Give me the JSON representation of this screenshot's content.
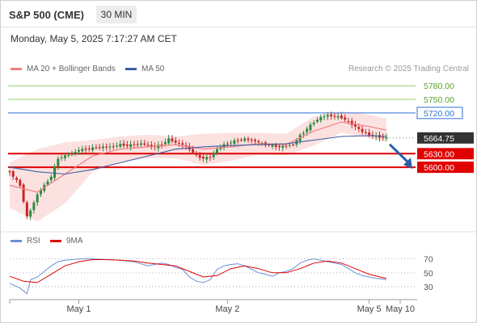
{
  "header": {
    "title": "S&P 500 (CME)",
    "timeframe": "30 MIN",
    "datetime": "Monday, May 5, 2025 7:17:27 AM CET"
  },
  "legend": {
    "ma20": "MA 20 + Bollinger Bands",
    "ma50": "MA 50",
    "rsi": "RSI",
    "ma9": "9MA",
    "credit": "Research © 2025 Trading Central"
  },
  "colors": {
    "ma20": "#f08080",
    "ma50": "#3a5f9e",
    "band_fill": "#fcdcdc",
    "resistance_green": "#8fcf70",
    "resistance_blue": "#2e6fd6",
    "support_red": "#e00000",
    "current_price": "#333333",
    "rsi": "#6b8fd8",
    "rsi_ma": "#e00000",
    "arrow": "#2a5fa8"
  },
  "chart_data": [
    {
      "type": "candlestick",
      "x_ticks": [
        "May 1",
        "May 2",
        "May 5",
        "May 10"
      ],
      "ylim": [
        5470,
        5800
      ],
      "levels": [
        {
          "value": 5780.0,
          "label": "5780.00",
          "kind": "resistance"
        },
        {
          "value": 5750.0,
          "label": "5750.00",
          "kind": "resistance"
        },
        {
          "value": 5720.0,
          "label": "5720.00",
          "kind": "pivot"
        },
        {
          "value": 5664.75,
          "label": "5664.75",
          "kind": "current"
        },
        {
          "value": 5630.0,
          "label": "5630.00",
          "kind": "support"
        },
        {
          "value": 5600.0,
          "label": "5600.00",
          "kind": "support"
        }
      ],
      "close_path": [
        [
          0,
          5590
        ],
        [
          3,
          5560
        ],
        [
          5,
          5490
        ],
        [
          6,
          5505
        ],
        [
          8,
          5540
        ],
        [
          10,
          5560
        ],
        [
          12,
          5580
        ],
        [
          14,
          5620
        ],
        [
          16,
          5625
        ],
        [
          18,
          5630
        ],
        [
          20,
          5638
        ],
        [
          22,
          5640
        ],
        [
          24,
          5642
        ],
        [
          26,
          5644
        ],
        [
          28,
          5645
        ],
        [
          30,
          5646
        ],
        [
          32,
          5650
        ],
        [
          34,
          5648
        ],
        [
          36,
          5650
        ],
        [
          38,
          5652
        ],
        [
          40,
          5648
        ],
        [
          42,
          5645
        ],
        [
          44,
          5650
        ],
        [
          46,
          5662
        ],
        [
          48,
          5655
        ],
        [
          50,
          5650
        ],
        [
          52,
          5640
        ],
        [
          54,
          5625
        ],
        [
          56,
          5620
        ],
        [
          58,
          5622
        ],
        [
          60,
          5640
        ],
        [
          62,
          5650
        ],
        [
          64,
          5655
        ],
        [
          66,
          5660
        ],
        [
          68,
          5662
        ],
        [
          70,
          5660
        ],
        [
          72,
          5655
        ],
        [
          74,
          5650
        ],
        [
          76,
          5648
        ],
        [
          78,
          5645
        ],
        [
          80,
          5648
        ],
        [
          82,
          5650
        ],
        [
          84,
          5670
        ],
        [
          86,
          5685
        ],
        [
          88,
          5700
        ],
        [
          90,
          5710
        ],
        [
          92,
          5715
        ],
        [
          94,
          5712
        ],
        [
          96,
          5710
        ],
        [
          98,
          5700
        ],
        [
          100,
          5690
        ],
        [
          102,
          5678
        ],
        [
          104,
          5672
        ],
        [
          106,
          5668
        ],
        [
          108,
          5666
        ],
        [
          109,
          5664.75
        ]
      ],
      "ma20": [
        [
          0,
          5560
        ],
        [
          8,
          5545
        ],
        [
          16,
          5585
        ],
        [
          24,
          5625
        ],
        [
          32,
          5640
        ],
        [
          40,
          5645
        ],
        [
          48,
          5650
        ],
        [
          56,
          5640
        ],
        [
          64,
          5645
        ],
        [
          72,
          5652
        ],
        [
          80,
          5650
        ],
        [
          88,
          5680
        ],
        [
          96,
          5700
        ],
        [
          104,
          5690
        ],
        [
          109,
          5682
        ]
      ],
      "ma50": [
        [
          0,
          5600
        ],
        [
          8,
          5590
        ],
        [
          16,
          5585
        ],
        [
          24,
          5595
        ],
        [
          32,
          5610
        ],
        [
          40,
          5625
        ],
        [
          48,
          5640
        ],
        [
          56,
          5645
        ],
        [
          64,
          5648
        ],
        [
          72,
          5650
        ],
        [
          80,
          5652
        ],
        [
          88,
          5660
        ],
        [
          96,
          5668
        ],
        [
          104,
          5670
        ],
        [
          109,
          5668
        ]
      ],
      "bollinger_upper": [
        [
          0,
          5610
        ],
        [
          8,
          5640
        ],
        [
          16,
          5655
        ],
        [
          24,
          5660
        ],
        [
          32,
          5668
        ],
        [
          40,
          5672
        ],
        [
          48,
          5668
        ],
        [
          56,
          5674
        ],
        [
          64,
          5676
        ],
        [
          72,
          5676
        ],
        [
          80,
          5674
        ],
        [
          88,
          5712
        ],
        [
          96,
          5724
        ],
        [
          104,
          5716
        ],
        [
          109,
          5708
        ]
      ],
      "bollinger_lower": [
        [
          0,
          5510
        ],
        [
          8,
          5480
        ],
        [
          16,
          5520
        ],
        [
          24,
          5590
        ],
        [
          32,
          5612
        ],
        [
          40,
          5620
        ],
        [
          48,
          5620
        ],
        [
          56,
          5605
        ],
        [
          64,
          5614
        ],
        [
          72,
          5628
        ],
        [
          80,
          5626
        ],
        [
          88,
          5648
        ],
        [
          96,
          5676
        ],
        [
          104,
          5664
        ],
        [
          109,
          5656
        ]
      ],
      "projection": {
        "from": 5664.75,
        "to": 5600.0
      }
    },
    {
      "type": "line",
      "name": "RSI",
      "ylim": [
        15,
        80
      ],
      "y_ticks": [
        70,
        50,
        30
      ],
      "rsi": [
        [
          0,
          35
        ],
        [
          3,
          28
        ],
        [
          5,
          20
        ],
        [
          6,
          40
        ],
        [
          8,
          44
        ],
        [
          10,
          52
        ],
        [
          12,
          60
        ],
        [
          14,
          66
        ],
        [
          16,
          68
        ],
        [
          18,
          69
        ],
        [
          20,
          70
        ],
        [
          24,
          70
        ],
        [
          28,
          69
        ],
        [
          32,
          68
        ],
        [
          36,
          66
        ],
        [
          40,
          60
        ],
        [
          44,
          64
        ],
        [
          46,
          62
        ],
        [
          48,
          58
        ],
        [
          50,
          55
        ],
        [
          52,
          44
        ],
        [
          54,
          38
        ],
        [
          56,
          36
        ],
        [
          58,
          40
        ],
        [
          60,
          55
        ],
        [
          62,
          60
        ],
        [
          64,
          62
        ],
        [
          66,
          63
        ],
        [
          68,
          60
        ],
        [
          70,
          55
        ],
        [
          72,
          50
        ],
        [
          74,
          48
        ],
        [
          76,
          45
        ],
        [
          78,
          50
        ],
        [
          80,
          52
        ],
        [
          82,
          56
        ],
        [
          84,
          64
        ],
        [
          86,
          68
        ],
        [
          88,
          70
        ],
        [
          90,
          68
        ],
        [
          92,
          66
        ],
        [
          94,
          64
        ],
        [
          96,
          62
        ],
        [
          98,
          56
        ],
        [
          100,
          50
        ],
        [
          102,
          46
        ],
        [
          104,
          44
        ],
        [
          106,
          42
        ],
        [
          108,
          41
        ],
        [
          109,
          40
        ]
      ],
      "ma9": [
        [
          0,
          45
        ],
        [
          4,
          38
        ],
        [
          8,
          36
        ],
        [
          12,
          48
        ],
        [
          16,
          60
        ],
        [
          20,
          66
        ],
        [
          24,
          69
        ],
        [
          28,
          69
        ],
        [
          32,
          68
        ],
        [
          36,
          67
        ],
        [
          40,
          64
        ],
        [
          44,
          62
        ],
        [
          48,
          60
        ],
        [
          52,
          52
        ],
        [
          56,
          44
        ],
        [
          60,
          46
        ],
        [
          64,
          56
        ],
        [
          68,
          60
        ],
        [
          72,
          56
        ],
        [
          76,
          50
        ],
        [
          80,
          50
        ],
        [
          84,
          56
        ],
        [
          88,
          64
        ],
        [
          92,
          67
        ],
        [
          96,
          64
        ],
        [
          100,
          56
        ],
        [
          104,
          48
        ],
        [
          108,
          43
        ],
        [
          109,
          42
        ]
      ]
    }
  ]
}
